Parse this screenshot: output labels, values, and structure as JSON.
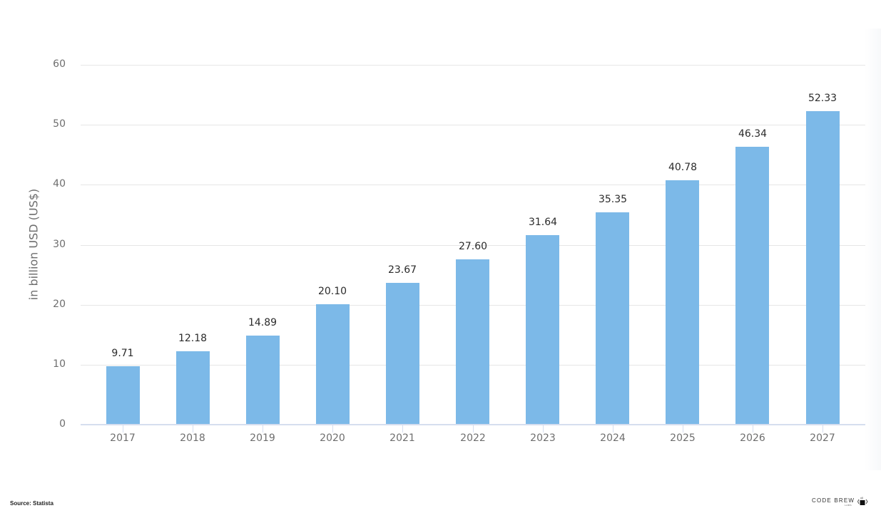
{
  "chart_data": {
    "type": "bar",
    "title": "",
    "xlabel": "",
    "ylabel": "in billion USD (US$)",
    "ylim": [
      0,
      60
    ],
    "yticks": [
      0,
      10,
      20,
      30,
      40,
      50,
      60
    ],
    "grid": true,
    "legend": null,
    "categories": [
      "2017",
      "2018",
      "2019",
      "2020",
      "2021",
      "2022",
      "2023",
      "2024",
      "2025",
      "2026",
      "2027"
    ],
    "values": [
      9.71,
      12.18,
      14.89,
      20.1,
      23.67,
      27.6,
      31.64,
      35.35,
      40.78,
      46.34,
      52.33
    ],
    "value_labels": [
      "9.71",
      "12.18",
      "14.89",
      "20.10",
      "23.67",
      "27.60",
      "31.64",
      "35.35",
      "40.78",
      "46.34",
      "52.33"
    ],
    "bar_color": "#7cb9e8"
  },
  "footer": {
    "source": "Source: Statista",
    "brand_name": "CODE BREW",
    "brand_sub": "LABS"
  }
}
